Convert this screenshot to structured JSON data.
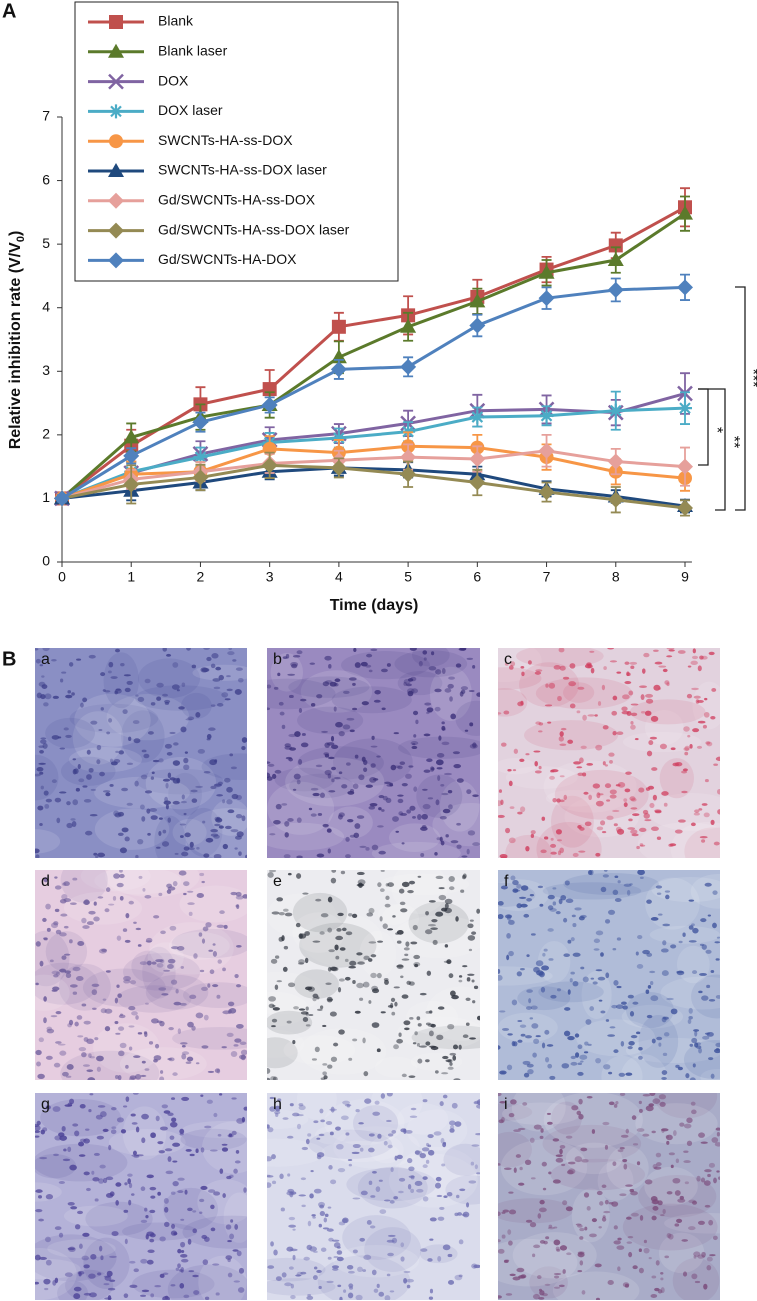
{
  "chart_data": {
    "type": "line",
    "xlabel": "Time (days)",
    "ylabel": {
      "main": "Relative inhibition rate (V/V",
      "sub": "0",
      "close": ")"
    },
    "x": [
      0,
      1,
      2,
      3,
      4,
      5,
      6,
      7,
      8,
      9
    ],
    "xlim": [
      0,
      9.1
    ],
    "xticks": [
      0,
      1,
      2,
      3,
      4,
      5,
      6,
      7,
      8,
      9
    ],
    "ylim": [
      0,
      7
    ],
    "yticks": [
      0,
      1,
      2,
      3,
      4,
      5,
      6,
      7
    ],
    "series": [
      {
        "name": "Blank",
        "color": "#c0504d",
        "marker": "square",
        "values": [
          1,
          1.83,
          2.48,
          2.72,
          3.7,
          3.88,
          4.17,
          4.6,
          4.98,
          5.58
        ],
        "errors": [
          0.05,
          0.25,
          0.27,
          0.3,
          0.22,
          0.3,
          0.27,
          0.2,
          0.2,
          0.3
        ]
      },
      {
        "name": "Blank laser",
        "color": "#5b7a2b",
        "marker": "triangle",
        "values": [
          1,
          1.96,
          2.28,
          2.47,
          3.22,
          3.7,
          4.1,
          4.55,
          4.75,
          5.48
        ],
        "errors": [
          0.05,
          0.22,
          0.2,
          0.2,
          0.25,
          0.22,
          0.2,
          0.2,
          0.2,
          0.27
        ]
      },
      {
        "name": "DOX",
        "color": "#8064a2",
        "marker": "x",
        "values": [
          1,
          1.4,
          1.7,
          1.92,
          2.02,
          2.18,
          2.38,
          2.4,
          2.35,
          2.65
        ],
        "errors": [
          0.05,
          0.25,
          0.2,
          0.2,
          0.15,
          0.2,
          0.25,
          0.22,
          0.2,
          0.32
        ]
      },
      {
        "name": "DOX laser",
        "color": "#4bacc6",
        "marker": "asterisk",
        "values": [
          1,
          1.42,
          1.65,
          1.88,
          1.95,
          2.05,
          2.28,
          2.3,
          2.38,
          2.42
        ],
        "errors": [
          0.05,
          0.15,
          0.15,
          0.15,
          0.15,
          0.15,
          0.15,
          0.15,
          0.3,
          0.25
        ]
      },
      {
        "name": "SWCNTs-HA-ss-DOX",
        "color": "#f79646",
        "marker": "circle",
        "values": [
          1,
          1.38,
          1.42,
          1.78,
          1.72,
          1.82,
          1.8,
          1.65,
          1.42,
          1.32
        ],
        "errors": [
          0.05,
          0.2,
          0.15,
          0.2,
          0.2,
          0.22,
          0.2,
          0.2,
          0.2,
          0.2
        ]
      },
      {
        "name": "SWCNTs-HA-ss-DOX laser",
        "color": "#1f497d",
        "marker": "triangle",
        "values": [
          1,
          1.12,
          1.25,
          1.42,
          1.48,
          1.45,
          1.38,
          1.15,
          1.03,
          0.88
        ],
        "errors": [
          0.05,
          0.15,
          0.12,
          0.12,
          0.12,
          0.12,
          0.12,
          0.12,
          0.1,
          0.1
        ]
      },
      {
        "name": "Gd/SWCNTs-HA-ss-DOX",
        "color": "#e6a09b",
        "marker": "diamond",
        "values": [
          1,
          1.3,
          1.42,
          1.55,
          1.6,
          1.65,
          1.62,
          1.75,
          1.58,
          1.5
        ],
        "errors": [
          0.05,
          0.15,
          0.15,
          0.15,
          0.15,
          0.2,
          0.2,
          0.25,
          0.2,
          0.3
        ]
      },
      {
        "name": "Gd/SWCNTs-HA-ss-DOX laser",
        "color": "#948a54",
        "marker": "diamond",
        "values": [
          1,
          1.22,
          1.33,
          1.52,
          1.48,
          1.38,
          1.25,
          1.1,
          0.98,
          0.85
        ],
        "errors": [
          0.05,
          0.3,
          0.2,
          0.2,
          0.15,
          0.2,
          0.2,
          0.15,
          0.2,
          0.12
        ]
      },
      {
        "name": "Gd/SWCNTs-HA-DOX",
        "color": "#4f81bd",
        "marker": "diamond",
        "values": [
          1,
          1.67,
          2.2,
          2.47,
          3.03,
          3.07,
          3.72,
          4.15,
          4.28,
          4.32
        ],
        "errors": [
          0.05,
          0.12,
          0.15,
          0.12,
          0.15,
          0.15,
          0.17,
          0.17,
          0.18,
          0.2
        ]
      }
    ],
    "annotations": [
      "*",
      "**",
      "***"
    ]
  },
  "figure": {
    "panel_labels": [
      "A",
      "B"
    ],
    "image_labels": [
      "a",
      "b",
      "c",
      "d",
      "e",
      "f",
      "g",
      "h",
      "i"
    ]
  }
}
